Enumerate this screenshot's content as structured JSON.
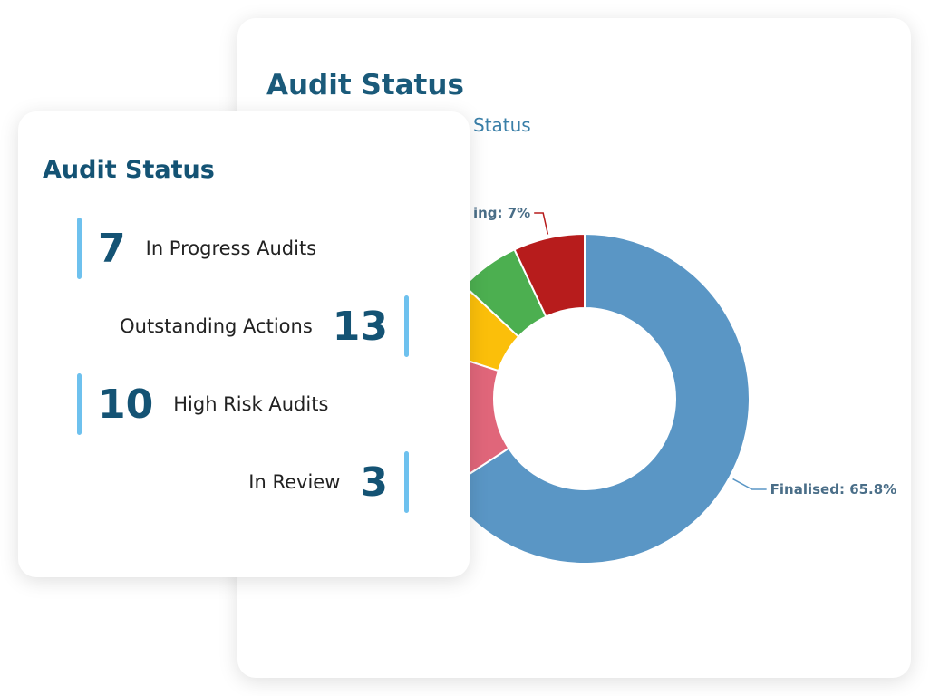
{
  "back_card": {
    "title": "Audit Status",
    "subtitle": "Status",
    "chart": {
      "type": "pie",
      "donut": true,
      "values": [
        65.8,
        14.2,
        7,
        6,
        7
      ],
      "colors": [
        "#5a96c5",
        "#e0667a",
        "#fbbf0a",
        "#4caf50",
        "#b71c1c"
      ],
      "value_labels": [
        "Finalised: 65.8%",
        null,
        null,
        null,
        "ing: 7%"
      ]
    }
  },
  "front_card": {
    "title": "Audit Status",
    "stats": [
      {
        "value": "7",
        "label": "In Progress Audits"
      },
      {
        "value": "13",
        "label": "Outstanding Actions"
      },
      {
        "value": "10",
        "label": "High Risk Audits"
      },
      {
        "value": "3",
        "label": "In Review"
      }
    ]
  }
}
